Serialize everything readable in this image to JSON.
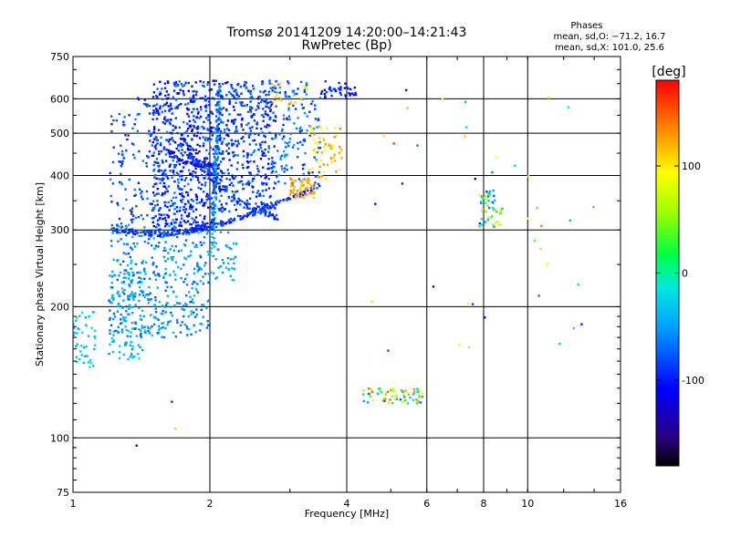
{
  "chart_data": {
    "type": "scatter",
    "title": "Tromsø 20141209 14:20:00–14:21:43",
    "subtitle": "RwPretec (Bp)",
    "xlabel": "Frequency [MHz]",
    "ylabel": "Stationary phase Virtual Height [km]",
    "x_scale": "log",
    "y_scale": "log",
    "xlim": [
      1,
      16
    ],
    "ylim": [
      75,
      750
    ],
    "x_ticks": [
      1,
      2,
      4,
      6,
      8,
      10,
      16
    ],
    "y_ticks": [
      75,
      100,
      200,
      300,
      400,
      500,
      600,
      750
    ],
    "grid": true,
    "phases": {
      "heading": "Phases",
      "line_o": "mean, sd,O: −71.2, 16.7",
      "line_x": "mean, sd,X: 101.0, 25.6"
    },
    "colorbar": {
      "label": "[deg]",
      "range": [
        -180,
        180
      ],
      "ticks": [
        -100,
        0,
        100
      ],
      "colormap": "rainbow"
    },
    "clusters": [
      {
        "kind": "point",
        "x": 1.0,
        "y": 95,
        "phase": -70
      },
      {
        "kind": "point",
        "x": 1.38,
        "y": 96,
        "phase": -130
      },
      {
        "kind": "point",
        "x": 1.65,
        "y": 121,
        "phase": -90
      },
      {
        "kind": "point",
        "x": 1.68,
        "y": 105,
        "phase": 110
      },
      {
        "kind": "blob",
        "xr": [
          1.0,
          1.12
        ],
        "yr": [
          145,
          195
        ],
        "n": 45,
        "pr": [
          -50,
          -10
        ]
      },
      {
        "kind": "blob",
        "xr": [
          1.2,
          1.45
        ],
        "yr": [
          150,
          240
        ],
        "n": 90,
        "pr": [
          -60,
          -20
        ]
      },
      {
        "kind": "blob",
        "xr": [
          1.2,
          2.0
        ],
        "yr": [
          170,
          310
        ],
        "n": 420,
        "pr": [
          -80,
          -30
        ]
      },
      {
        "kind": "blob",
        "xr": [
          2.0,
          2.3
        ],
        "yr": [
          230,
          300
        ],
        "n": 50,
        "pr": [
          -60,
          -30
        ]
      },
      {
        "kind": "curve",
        "pts": [
          [
            1.22,
            300
          ],
          [
            1.4,
            295
          ],
          [
            1.6,
            294
          ],
          [
            1.8,
            298
          ],
          [
            2.0,
            305
          ],
          [
            2.3,
            318
          ],
          [
            2.6,
            335
          ],
          [
            3.0,
            355
          ],
          [
            3.5,
            380
          ]
        ],
        "n": 240,
        "jit": 0.012,
        "pr": [
          -110,
          -70
        ]
      },
      {
        "kind": "curve",
        "pts": [
          [
            1.4,
            600
          ],
          [
            1.6,
            540
          ],
          [
            1.8,
            450
          ],
          [
            2.0,
            400
          ],
          [
            2.3,
            350
          ],
          [
            2.8,
            320
          ]
        ],
        "n": 120,
        "jit": 0.015,
        "pr": [
          -110,
          -70
        ]
      },
      {
        "kind": "curve",
        "pts": [
          [
            1.55,
            470
          ],
          [
            1.75,
            430
          ],
          [
            1.95,
            420
          ],
          [
            2.05,
            425
          ]
        ],
        "n": 60,
        "jit": 0.01,
        "pr": [
          -120,
          -90
        ]
      },
      {
        "kind": "curve",
        "pts": [
          [
            2.03,
            300
          ],
          [
            2.06,
            400
          ],
          [
            2.08,
            500
          ],
          [
            2.1,
            640
          ]
        ],
        "n": 140,
        "jit": 0.01,
        "pr": [
          -80,
          -40
        ]
      },
      {
        "kind": "blob",
        "xr": [
          1.2,
          1.55
        ],
        "yr": [
          300,
          560
        ],
        "n": 120,
        "pr": [
          -100,
          -60
        ]
      },
      {
        "kind": "blob",
        "xr": [
          1.5,
          2.05
        ],
        "yr": [
          300,
          660
        ],
        "n": 600,
        "pr": [
          -125,
          -60
        ]
      },
      {
        "kind": "blob",
        "xr": [
          2.05,
          2.8
        ],
        "yr": [
          330,
          660
        ],
        "n": 450,
        "pr": [
          -110,
          -60
        ]
      },
      {
        "kind": "blob",
        "xr": [
          2.8,
          3.5
        ],
        "yr": [
          380,
          660
        ],
        "n": 130,
        "pr": [
          -100,
          -40
        ]
      },
      {
        "kind": "blob",
        "xr": [
          3.5,
          4.2
        ],
        "yr": [
          600,
          660
        ],
        "n": 40,
        "pr": [
          -120,
          -80
        ]
      },
      {
        "kind": "blob",
        "xr": [
          3.0,
          3.4
        ],
        "yr": [
          355,
          395
        ],
        "n": 60,
        "pr": [
          110,
          140
        ]
      },
      {
        "kind": "blob",
        "xr": [
          3.3,
          3.9
        ],
        "yr": [
          390,
          520
        ],
        "n": 60,
        "pr": [
          80,
          140
        ]
      },
      {
        "kind": "blob",
        "xr": [
          2.7,
          3.3
        ],
        "yr": [
          580,
          660
        ],
        "n": 20,
        "pr": [
          80,
          150
        ]
      },
      {
        "kind": "blob",
        "xr": [
          4.3,
          5.9
        ],
        "yr": [
          120,
          130
        ],
        "n": 70,
        "pr": [
          -80,
          150
        ]
      },
      {
        "kind": "blob",
        "xr": [
          7.8,
          8.8
        ],
        "yr": [
          305,
          370
        ],
        "n": 55,
        "pr": [
          -90,
          120
        ]
      },
      {
        "kind": "scatter",
        "xr": [
          4.0,
          14.0
        ],
        "yr": [
          150,
          650
        ],
        "n": 40,
        "pr": [
          -120,
          170
        ]
      }
    ]
  }
}
